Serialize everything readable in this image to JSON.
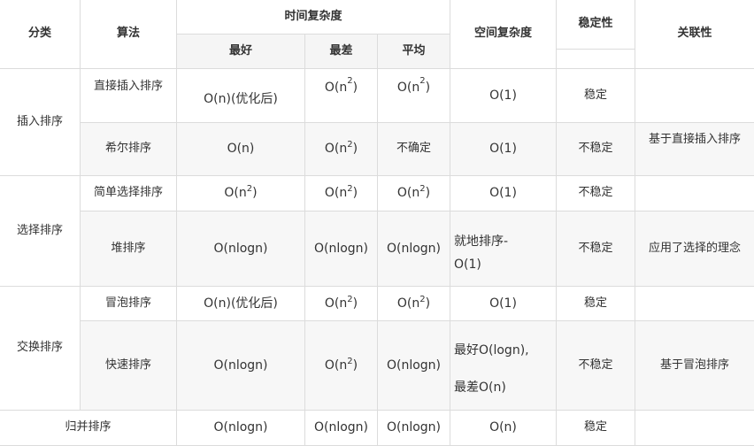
{
  "headers": {
    "category": "分类",
    "algorithm": "算法",
    "time_complexity": "时间复杂度",
    "best": "最好",
    "worst": "最差",
    "average": "平均",
    "space_complexity": "空间复杂度",
    "stability": "稳定性",
    "relation": "关联性"
  },
  "groups": {
    "insertion": "插入排序",
    "selection": "选择排序",
    "exchange": "交换排序"
  },
  "rows": [
    {
      "name": "直接插入排序",
      "best": "O(n)(优化后)",
      "worst": "O(n",
      "worst_sup": "2",
      "worst_tail": ")",
      "avg": "O(n",
      "avg_sup": "2",
      "avg_tail": ")",
      "space": "O(1)",
      "stability": "稳定",
      "relation": ""
    },
    {
      "name": "希尔排序",
      "best": "O(n)",
      "worst": "O(n",
      "worst_sup": "2",
      "worst_tail": ")",
      "avg": "不确定",
      "space": "O(1)",
      "stability": "不稳定",
      "relation": "基于直接插入排序"
    },
    {
      "name": "简单选择排序",
      "best": "O(n",
      "best_sup": "2",
      "best_tail": ")",
      "worst": "O(n",
      "worst_sup": "2",
      "worst_tail": ")",
      "avg": "O(n",
      "avg_sup": "2",
      "avg_tail": ")",
      "space": "O(1)",
      "stability": "不稳定",
      "relation": ""
    },
    {
      "name": "堆排序",
      "best": "O(nlogn)",
      "worst": "O(nlogn)",
      "avg": "O(nlogn)",
      "space_line1": "就地排序-",
      "space_line2": "O(1)",
      "stability": "不稳定",
      "relation": "应用了选择的理念"
    },
    {
      "name": "冒泡排序",
      "best": "O(n)(优化后)",
      "worst": "O(n",
      "worst_sup": "2",
      "worst_tail": ")",
      "avg": "O(n",
      "avg_sup": "2",
      "avg_tail": ")",
      "space": "O(1)",
      "stability": "稳定",
      "relation": ""
    },
    {
      "name": "快速排序",
      "best": "O(nlogn)",
      "worst": "O(n",
      "worst_sup": "2",
      "worst_tail": ")",
      "avg": "O(nlogn)",
      "space_line1": "最好O(logn),",
      "space_line2": "最差O(n)",
      "stability": "不稳定",
      "relation": "基于冒泡排序"
    },
    {
      "name": "归并排序",
      "best": "O(nlogn)",
      "worst": "O(nlogn)",
      "avg": "O(nlogn)",
      "space": "O(n)",
      "stability": "稳定",
      "relation": ""
    }
  ]
}
